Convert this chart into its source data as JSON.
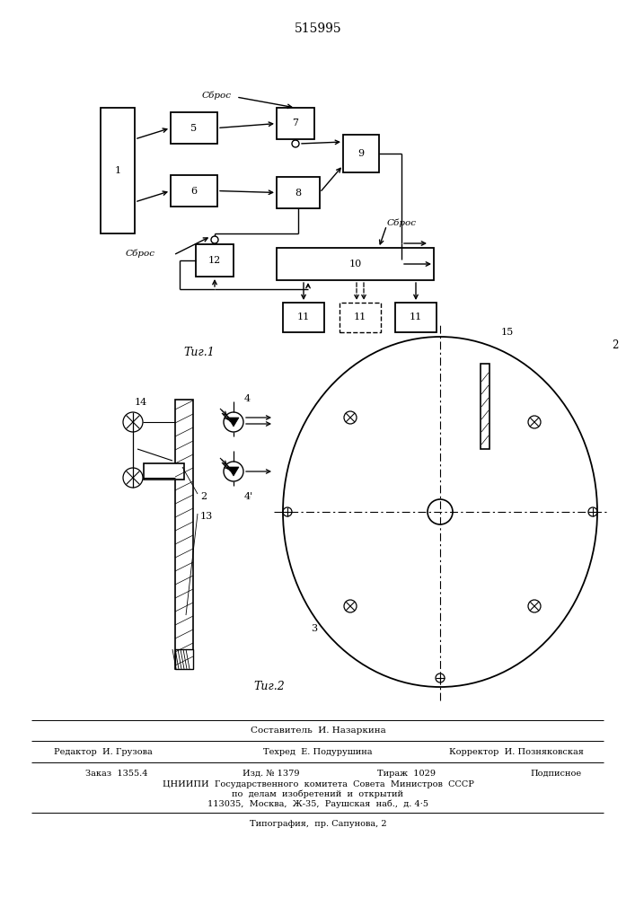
{
  "title": "515995",
  "fig1_label": "Τиг.1",
  "fig2_label": "Τиг.2",
  "bg_color": "#ffffff",
  "lc": "#000000",
  "sbros": "Сброс",
  "footer": {
    "sestavitel": "Составитель  И. Назаркина",
    "redaktor": "Редактор  И. Грузова",
    "tehred": "Техред  Е. Подурушина",
    "korrektor": "Корректор  И. Позняковская",
    "zakaz": "Заказ  1355.4",
    "izd": "Изд. № 1379",
    "tirazh": "Тираж  1029",
    "podpisnoe": "Подписное",
    "cniipи": "ЦНИИПИ  Государственного  комитета  Совета  Министров  СССР",
    "po_delam": "по  делам  изобретений  и  открытий",
    "addr": "113035,  Москва,  Ж-35,  Раушская  наб.,  д. 4·5",
    "tipografiya": "Типография,  пр. Сапунова, 2"
  }
}
